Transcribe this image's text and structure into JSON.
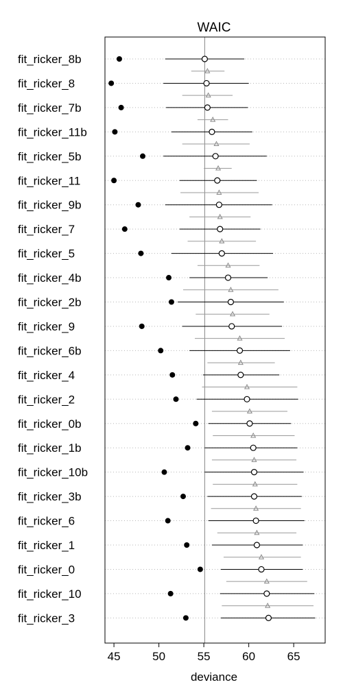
{
  "chart_data": {
    "type": "scatter",
    "title": "WAIC",
    "xlabel": "deviance",
    "xlim": [
      44,
      68.5
    ],
    "xticks": [
      45,
      50,
      55,
      60,
      65
    ],
    "reference_line": 55.1,
    "grid": true,
    "categories": [
      "fit_ricker_8b",
      "fit_ricker_8",
      "fit_ricker_7b",
      "fit_ricker_11b",
      "fit_ricker_5b",
      "fit_ricker_11",
      "fit_ricker_9b",
      "fit_ricker_7",
      "fit_ricker_5",
      "fit_ricker_4b",
      "fit_ricker_2b",
      "fit_ricker_9",
      "fit_ricker_6b",
      "fit_ricker_4",
      "fit_ricker_2",
      "fit_ricker_0b",
      "fit_ricker_1b",
      "fit_ricker_10b",
      "fit_ricker_3b",
      "fit_ricker_6",
      "fit_ricker_1",
      "fit_ricker_0",
      "fit_ricker_10",
      "fit_ricker_3"
    ],
    "series": [
      {
        "values": [
          45.6,
          44.7,
          45.8,
          45.1,
          48.2,
          45.0,
          47.7,
          46.2,
          48.0,
          51.1,
          51.4,
          48.1,
          50.2,
          51.5,
          51.9,
          54.1,
          53.2,
          50.6,
          52.7,
          51.0,
          53.1,
          54.6,
          51.3,
          53.0
        ]
      },
      {
        "values": [
          55.1,
          55.3,
          55.4,
          55.9,
          56.3,
          56.5,
          56.7,
          56.8,
          57.0,
          57.7,
          58.0,
          58.1,
          59.0,
          59.1,
          59.8,
          60.1,
          60.5,
          60.6,
          60.6,
          60.8,
          60.9,
          61.4,
          62.0,
          62.2
        ]
      },
      {
        "values": [
          50.7,
          50.5,
          50.8,
          51.4,
          50.5,
          52.3,
          50.7,
          52.3,
          51.4,
          53.4,
          52.1,
          52.6,
          53.4,
          54.9,
          54.2,
          55.5,
          55.1,
          55.1,
          55.4,
          55.5,
          55.9,
          56.9,
          56.8,
          56.9
        ]
      },
      {
        "values": [
          59.5,
          60.0,
          59.9,
          60.4,
          62.0,
          60.9,
          62.6,
          61.3,
          62.7,
          62.1,
          63.9,
          63.7,
          64.6,
          63.4,
          65.5,
          64.7,
          65.4,
          66.1,
          65.9,
          66.2,
          66.0,
          66.0,
          67.3,
          67.4
        ]
      },
      {
        "values": [
          55.4,
          55.5,
          56.0,
          56.4,
          56.6,
          56.7,
          56.8,
          57.0,
          57.7,
          58.0,
          58.2,
          59.0,
          59.1,
          59.8,
          60.1,
          60.5,
          60.6,
          60.7,
          60.8,
          60.9,
          61.4,
          62.0,
          62.1,
          null
        ]
      },
      {
        "values": [
          53.6,
          52.6,
          54.3,
          52.6,
          55.0,
          52.4,
          53.4,
          53.2,
          54.3,
          52.7,
          54.1,
          54.0,
          55.4,
          54.8,
          55.9,
          56.0,
          55.9,
          56.0,
          55.8,
          56.5,
          57.2,
          57.5,
          57.0,
          null
        ]
      },
      {
        "values": [
          57.3,
          58.2,
          57.7,
          60.1,
          58.1,
          61.1,
          60.2,
          60.8,
          61.2,
          63.3,
          62.3,
          64.0,
          62.9,
          65.4,
          64.3,
          65.1,
          65.3,
          65.4,
          65.8,
          65.3,
          65.8,
          66.5,
          67.2,
          null
        ]
      }
    ]
  }
}
